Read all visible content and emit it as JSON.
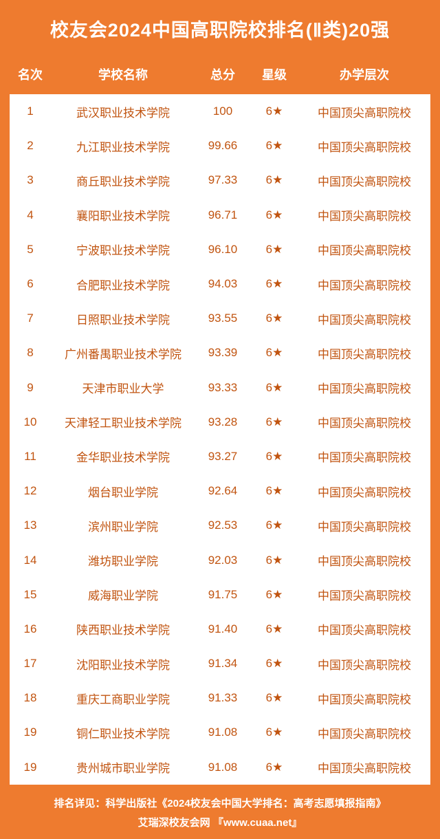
{
  "title": "校友会2024中国高职院校排名(Ⅱ类)20强",
  "columns": {
    "rank": "名次",
    "name": "学校名称",
    "score": "总分",
    "star": "星级",
    "level": "办学层次"
  },
  "rows": [
    {
      "rank": "1",
      "name": "武汉职业技术学院",
      "score": "100",
      "star": "6★",
      "level": "中国顶尖高职院校"
    },
    {
      "rank": "2",
      "name": "九江职业技术学院",
      "score": "99.66",
      "star": "6★",
      "level": "中国顶尖高职院校"
    },
    {
      "rank": "3",
      "name": "商丘职业技术学院",
      "score": "97.33",
      "star": "6★",
      "level": "中国顶尖高职院校"
    },
    {
      "rank": "4",
      "name": "襄阳职业技术学院",
      "score": "96.71",
      "star": "6★",
      "level": "中国顶尖高职院校"
    },
    {
      "rank": "5",
      "name": "宁波职业技术学院",
      "score": "96.10",
      "star": "6★",
      "level": "中国顶尖高职院校"
    },
    {
      "rank": "6",
      "name": "合肥职业技术学院",
      "score": "94.03",
      "star": "6★",
      "level": "中国顶尖高职院校"
    },
    {
      "rank": "7",
      "name": "日照职业技术学院",
      "score": "93.55",
      "star": "6★",
      "level": "中国顶尖高职院校"
    },
    {
      "rank": "8",
      "name": "广州番禺职业技术学院",
      "score": "93.39",
      "star": "6★",
      "level": "中国顶尖高职院校"
    },
    {
      "rank": "9",
      "name": "天津市职业大学",
      "score": "93.33",
      "star": "6★",
      "level": "中国顶尖高职院校"
    },
    {
      "rank": "10",
      "name": "天津轻工职业技术学院",
      "score": "93.28",
      "star": "6★",
      "level": "中国顶尖高职院校"
    },
    {
      "rank": "11",
      "name": "金华职业技术学院",
      "score": "93.27",
      "star": "6★",
      "level": "中国顶尖高职院校"
    },
    {
      "rank": "12",
      "name": "烟台职业学院",
      "score": "92.64",
      "star": "6★",
      "level": "中国顶尖高职院校"
    },
    {
      "rank": "13",
      "name": "滨州职业学院",
      "score": "92.53",
      "star": "6★",
      "level": "中国顶尖高职院校"
    },
    {
      "rank": "14",
      "name": "潍坊职业学院",
      "score": "92.03",
      "star": "6★",
      "level": "中国顶尖高职院校"
    },
    {
      "rank": "15",
      "name": "威海职业学院",
      "score": "91.75",
      "star": "6★",
      "level": "中国顶尖高职院校"
    },
    {
      "rank": "16",
      "name": "陕西职业技术学院",
      "score": "91.40",
      "star": "6★",
      "level": "中国顶尖高职院校"
    },
    {
      "rank": "17",
      "name": "沈阳职业技术学院",
      "score": "91.34",
      "star": "6★",
      "level": "中国顶尖高职院校"
    },
    {
      "rank": "18",
      "name": "重庆工商职业学院",
      "score": "91.33",
      "star": "6★",
      "level": "中国顶尖高职院校"
    },
    {
      "rank": "19",
      "name": "铜仁职业技术学院",
      "score": "91.08",
      "star": "6★",
      "level": "中国顶尖高职院校"
    },
    {
      "rank": "19",
      "name": "贵州城市职业学院",
      "score": "91.08",
      "star": "6★",
      "level": "中国顶尖高职院校"
    }
  ],
  "footer": {
    "line1": "排名详见：科学出版社《2024校友会中国大学排名：高考志愿填报指南》",
    "line2": "艾瑞深校友会网 『www.cuaa.net』"
  },
  "style": {
    "brand_bg": "#ee7b2f",
    "text_on_brand": "#ffffff",
    "table_bg": "#ffffff",
    "cell_text": "#c15410",
    "title_fontsize": 27,
    "header_fontsize": 18,
    "cell_fontsize": 17,
    "footer_fontsize": 15
  }
}
